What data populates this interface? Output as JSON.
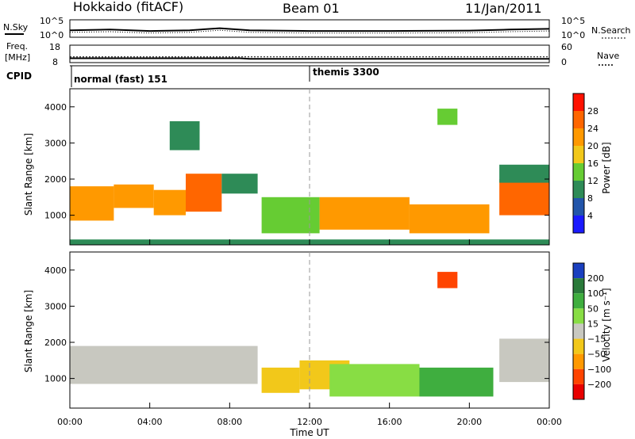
{
  "title": {
    "station": "Hokkaido (fitACF)",
    "beam": "Beam 01",
    "date": "11/Jan/2011"
  },
  "top_panels": {
    "nsky_label": "N.Sky",
    "nsearch_label": "N.Search",
    "noise_ticks_left": [
      "10^5",
      "10^0"
    ],
    "noise_ticks_right": [
      "10^5",
      "10^0"
    ],
    "freq_label_1": "Freq.",
    "freq_label_2": "[MHz]",
    "freq_ticks": [
      "18",
      "8"
    ],
    "nave_label": "Nave",
    "nave_ticks": [
      "60",
      "0"
    ],
    "cpid_label": "CPID",
    "cpid_mode_1": "normal (fast) 151",
    "cpid_mode_2": "themis 3300"
  },
  "x_axis": {
    "label": "Time UT",
    "ticks": [
      "00:00",
      "04:00",
      "08:00",
      "12:00",
      "16:00",
      "20:00",
      "00:00"
    ]
  },
  "power_panel": {
    "ylabel": "Slant Range [km]",
    "yticks": [
      "1000",
      "2000",
      "3000",
      "4000"
    ],
    "colorbar_label": "Power [dB]",
    "colorbar_ticks": [
      "4",
      "8",
      "12",
      "16",
      "20",
      "24",
      "28"
    ],
    "colors": [
      "#1a1aff",
      "#2255aa",
      "#2e8b57",
      "#66cc33",
      "#f2c81a",
      "#ff9900",
      "#ff6600",
      "#ff1100"
    ]
  },
  "velocity_panel": {
    "ylabel": "Slant Range [km]",
    "yticks": [
      "1000",
      "2000",
      "3000",
      "4000"
    ],
    "colorbar_label": "Velocity [m s⁻¹]",
    "colorbar_ticks": [
      "200",
      "100",
      "50",
      "15",
      "−15",
      "−50",
      "−100",
      "−200"
    ],
    "colors": [
      "#1a3fbf",
      "#2a7a3a",
      "#3fae3f",
      "#88dd44",
      "#c8c8c0",
      "#f2c81a",
      "#ff9900",
      "#ff4400",
      "#e80000"
    ]
  },
  "chart_data": {
    "type": "heatmap",
    "title": "Beam 01",
    "xlabel": "Time UT",
    "ylabel": "Slant Range [km]",
    "x_range_hours": [
      0,
      24
    ],
    "y_range_km": [
      180,
      4500
    ],
    "power_scale_db": [
      0,
      30
    ],
    "velocity_scale_ms": [
      -250,
      250
    ],
    "power_regions": [
      {
        "t0": 0.0,
        "t1": 2.2,
        "r0": 850,
        "r1": 1800,
        "value": 22
      },
      {
        "t0": 2.2,
        "t1": 4.2,
        "r0": 1200,
        "r1": 1850,
        "value": 20
      },
      {
        "t0": 4.2,
        "t1": 5.8,
        "r0": 1000,
        "r1": 1700,
        "value": 21
      },
      {
        "t0": 5.8,
        "t1": 7.6,
        "r0": 1100,
        "r1": 2150,
        "value": 26
      },
      {
        "t0": 7.6,
        "t1": 9.4,
        "r0": 1600,
        "r1": 2150,
        "value": 10
      },
      {
        "t0": 9.6,
        "t1": 12.5,
        "r0": 500,
        "r1": 1500,
        "value": 14
      },
      {
        "t0": 12.5,
        "t1": 17.0,
        "r0": 600,
        "r1": 1500,
        "value": 19
      },
      {
        "t0": 17.0,
        "t1": 21.0,
        "r0": 500,
        "r1": 1300,
        "value": 22
      },
      {
        "t0": 21.5,
        "t1": 24.0,
        "r0": 1000,
        "r1": 2000,
        "value": 24
      },
      {
        "t0": 21.5,
        "t1": 24.0,
        "r0": 1900,
        "r1": 2400,
        "value": 8
      },
      {
        "t0": 18.4,
        "t1": 19.4,
        "r0": 3500,
        "r1": 3950,
        "value": 14
      },
      {
        "t0": 5.0,
        "t1": 6.5,
        "r0": 2800,
        "r1": 3600,
        "value": 8
      },
      {
        "t0": 0.0,
        "t1": 24.0,
        "r0": 180,
        "r1": 330,
        "value": 8
      }
    ],
    "velocity_regions": [
      {
        "t0": 0.0,
        "t1": 9.4,
        "r0": 850,
        "r1": 1900,
        "value": 0
      },
      {
        "t0": 9.6,
        "t1": 11.5,
        "r0": 600,
        "r1": 1300,
        "value": -20
      },
      {
        "t0": 11.5,
        "t1": 14.0,
        "r0": 700,
        "r1": 1500,
        "value": -40
      },
      {
        "t0": 13.0,
        "t1": 17.5,
        "r0": 500,
        "r1": 1400,
        "value": 40
      },
      {
        "t0": 17.5,
        "t1": 21.2,
        "r0": 500,
        "r1": 1300,
        "value": 70
      },
      {
        "t0": 21.5,
        "t1": 24.0,
        "r0": 900,
        "r1": 2100,
        "value": 0
      },
      {
        "t0": 18.4,
        "t1": 19.4,
        "r0": 3500,
        "r1": 3950,
        "value": -200
      }
    ],
    "noise_sky": [
      {
        "t": 0,
        "v": 2
      },
      {
        "t": 2,
        "v": 2.2
      },
      {
        "t": 4,
        "v": 1.8
      },
      {
        "t": 6,
        "v": 2
      },
      {
        "t": 7.5,
        "v": 2.6
      },
      {
        "t": 9,
        "v": 2
      },
      {
        "t": 12,
        "v": 1.8
      },
      {
        "t": 16,
        "v": 1.8
      },
      {
        "t": 20,
        "v": 1.9
      },
      {
        "t": 22,
        "v": 2.2
      },
      {
        "t": 24,
        "v": 2.4
      }
    ],
    "frequency_mhz": [
      {
        "t": 0,
        "v": 10.5
      },
      {
        "t": 8.5,
        "v": 10.5
      },
      {
        "t": 9,
        "v": 10.2
      },
      {
        "t": 24,
        "v": 10.2
      }
    ],
    "nave": [
      {
        "t": 0,
        "v": 20
      },
      {
        "t": 24,
        "v": 20
      }
    ],
    "cpid_change_hours": 12.0,
    "grid": false
  }
}
